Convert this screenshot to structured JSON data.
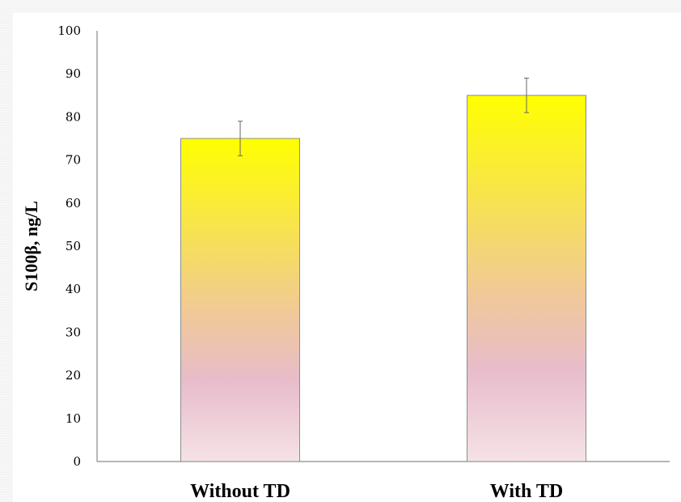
{
  "chart_data": {
    "type": "bar",
    "title": "",
    "xlabel": "",
    "ylabel": "S100β, ng/L",
    "categories": [
      "Without TD",
      "With TD"
    ],
    "values": [
      75,
      85
    ],
    "error_bars": [
      4,
      4
    ],
    "ylim": [
      0,
      100
    ],
    "yticks": [
      "0",
      "10",
      "20",
      "30",
      "40",
      "50",
      "60",
      "70",
      "80",
      "90",
      "100"
    ],
    "grid": false,
    "legend": "none",
    "colors": {
      "bar_top": "#ffff00",
      "bar_middle": "#f0c89a",
      "bar_lower": "#e8bccb",
      "bar_bottom": "#f5e2e6",
      "bar_border": "#8c8c8c",
      "axis": "#8a8a8a",
      "error_bar": "#666666"
    }
  }
}
